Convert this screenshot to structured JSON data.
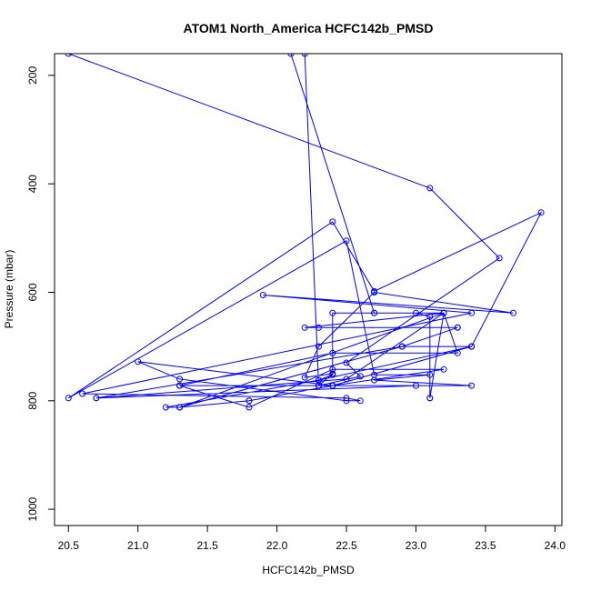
{
  "chart_data": {
    "type": "line",
    "title": "ATOM1 North_America HCFC142b_PMSD",
    "xlabel": "HCFC142b_PMSD",
    "ylabel": "Pressure (mbar)",
    "xlim": [
      20.4,
      24.05
    ],
    "ylim": [
      1030,
      160
    ],
    "y_reversed": true,
    "x_ticks": [
      20.5,
      21.0,
      21.5,
      22.0,
      22.5,
      23.0,
      23.5,
      24.0
    ],
    "x_tick_labels": [
      "20.5",
      "21.0",
      "21.5",
      "22.0",
      "22.5",
      "23.0",
      "23.5",
      "24.0"
    ],
    "y_ticks": [
      200,
      400,
      600,
      800,
      1000
    ],
    "y_tick_labels": [
      "200",
      "400",
      "600",
      "800",
      "1000"
    ],
    "grid": false,
    "legend": "none",
    "series_color": "#0000ff",
    "series": [
      {
        "x": [
          22.1,
          22.7,
          22.7,
          23.0,
          23.1,
          23.1,
          23.1,
          23.2,
          22.4,
          22.4,
          22.3,
          22.3,
          22.4,
          21.8,
          21.8,
          21.3,
          21.2,
          22.3,
          23.4,
          23.4,
          22.4,
          21.0,
          21.3,
          22.5,
          22.6,
          22.5,
          20.6,
          23.4,
          21.9,
          23.7,
          22.7,
          22.3,
          22.2,
          22.4,
          22.3,
          22.6,
          22.5,
          23.6,
          23.1,
          20.5,
          22.2,
          22.3,
          22.4,
          23.2,
          22.4,
          21.8,
          21.3,
          23.0,
          20.7,
          22.9,
          23.3,
          22.3,
          22.2,
          23.2,
          23.3,
          22.4,
          21.3,
          23.4,
          22.7,
          23.1,
          22.7,
          22.5,
          20.5,
          22.4,
          22.7,
          23.9,
          23.4,
          22.9,
          21.3,
          23.2,
          22.5,
          20.7,
          22.9,
          23.3
        ],
        "y": [
          160,
          638,
          638,
          638,
          645,
          795,
          795,
          638,
          638,
          752,
          762,
          772,
          772,
          800,
          800,
          812,
          812,
          762,
          700,
          700,
          772,
          728,
          760,
          800,
          800,
          795,
          787,
          638,
          605,
          638,
          600,
          700,
          757,
          750,
          772,
          755,
          730,
          537,
          408,
          160,
          160,
          772,
          772,
          742,
          742,
          812,
          772,
          772,
          795,
          700,
          665,
          665,
          665,
          638,
          712,
          712,
          772,
          772,
          762,
          752,
          752,
          505,
          795,
          470,
          598,
          453,
          700,
          700,
          812,
          638,
          760,
          795,
          700,
          665
        ]
      }
    ]
  }
}
